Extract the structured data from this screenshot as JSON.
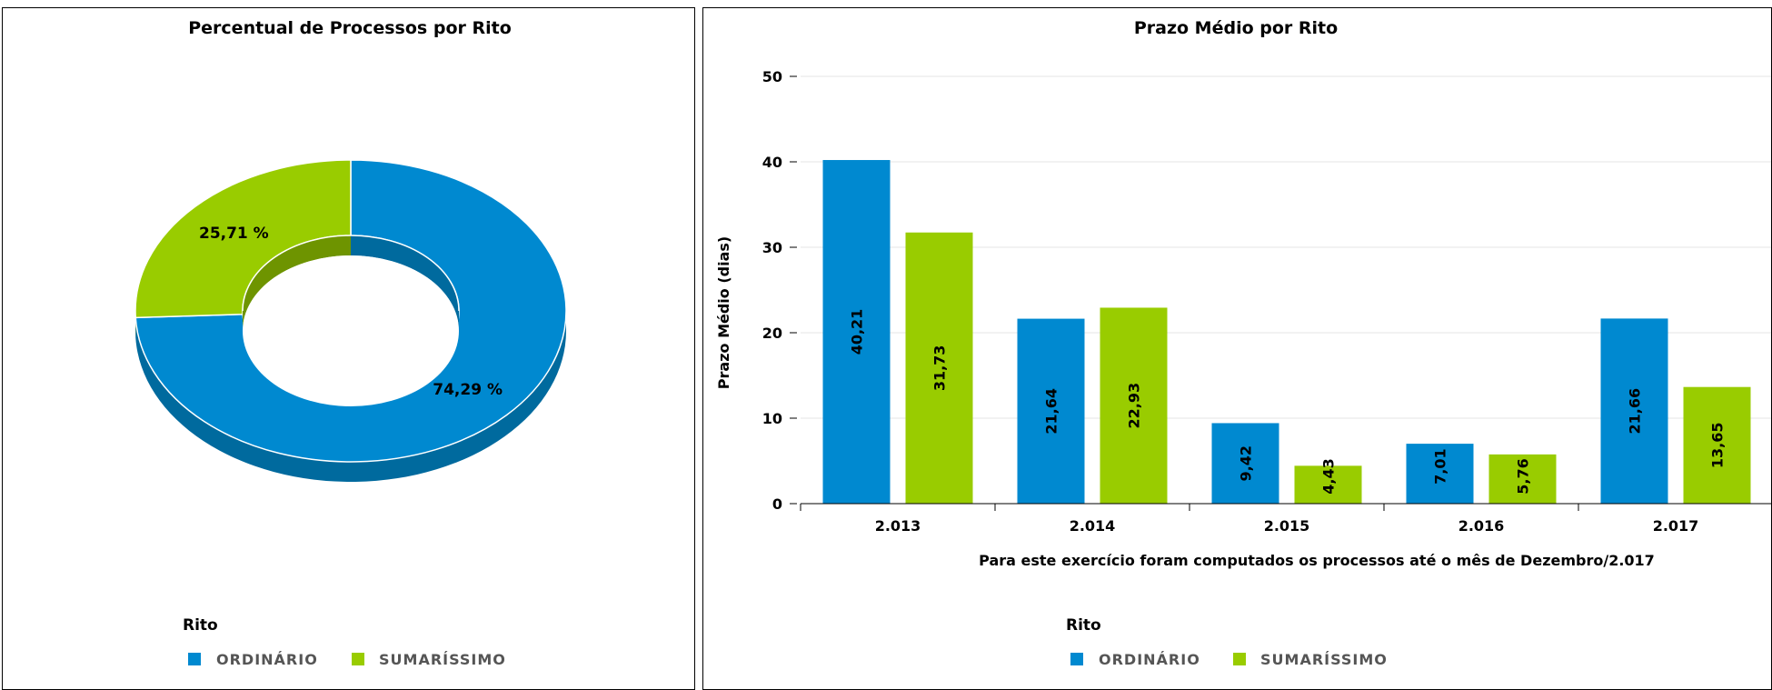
{
  "colors": {
    "ordinario": "#0089D0",
    "ordinario_dark": "#006A9E",
    "sumarissimo": "#99CC00",
    "sumarissimo_dark": "#6E9400"
  },
  "chart_data": [
    {
      "type": "pie",
      "title": "Percentual de Processos por Rito",
      "labels": [
        "ORDINÁRIO",
        "SUMARÍSSIMO"
      ],
      "values": [
        74.29,
        25.71
      ],
      "value_labels": [
        "74,29 %",
        "25,71 %"
      ],
      "donut": true,
      "legend": {
        "title": "Rito",
        "items": [
          "ORDINÁRIO",
          "SUMARÍSSIMO"
        ],
        "placement": "bottom-left"
      }
    },
    {
      "type": "bar",
      "title": "Prazo Médio por Rito",
      "categories": [
        "2.013",
        "2.014",
        "2.015",
        "2.016",
        "2.017"
      ],
      "series": [
        {
          "name": "ORDINÁRIO",
          "values": [
            40.21,
            21.64,
            9.42,
            7.01,
            21.66
          ],
          "labels": [
            "40,21",
            "21,64",
            "9,42",
            "7,01",
            "21,66"
          ]
        },
        {
          "name": "SUMARÍSSIMO",
          "values": [
            31.73,
            22.93,
            4.43,
            5.76,
            13.65
          ],
          "labels": [
            "31,73",
            "22,93",
            "4,43",
            "5,76",
            "13,65"
          ]
        }
      ],
      "xlabel": "Para este exercício foram computados os processos até o mês de Dezembro/2.017",
      "ylabel": "Prazo Médio (dias)",
      "ylim": [
        0,
        50
      ],
      "yticks": [
        "0",
        "10",
        "20",
        "30",
        "40",
        "50"
      ],
      "grid": true,
      "legend": {
        "title": "Rito",
        "items": [
          "ORDINÁRIO",
          "SUMARÍSSIMO"
        ],
        "placement": "bottom-left"
      }
    }
  ]
}
